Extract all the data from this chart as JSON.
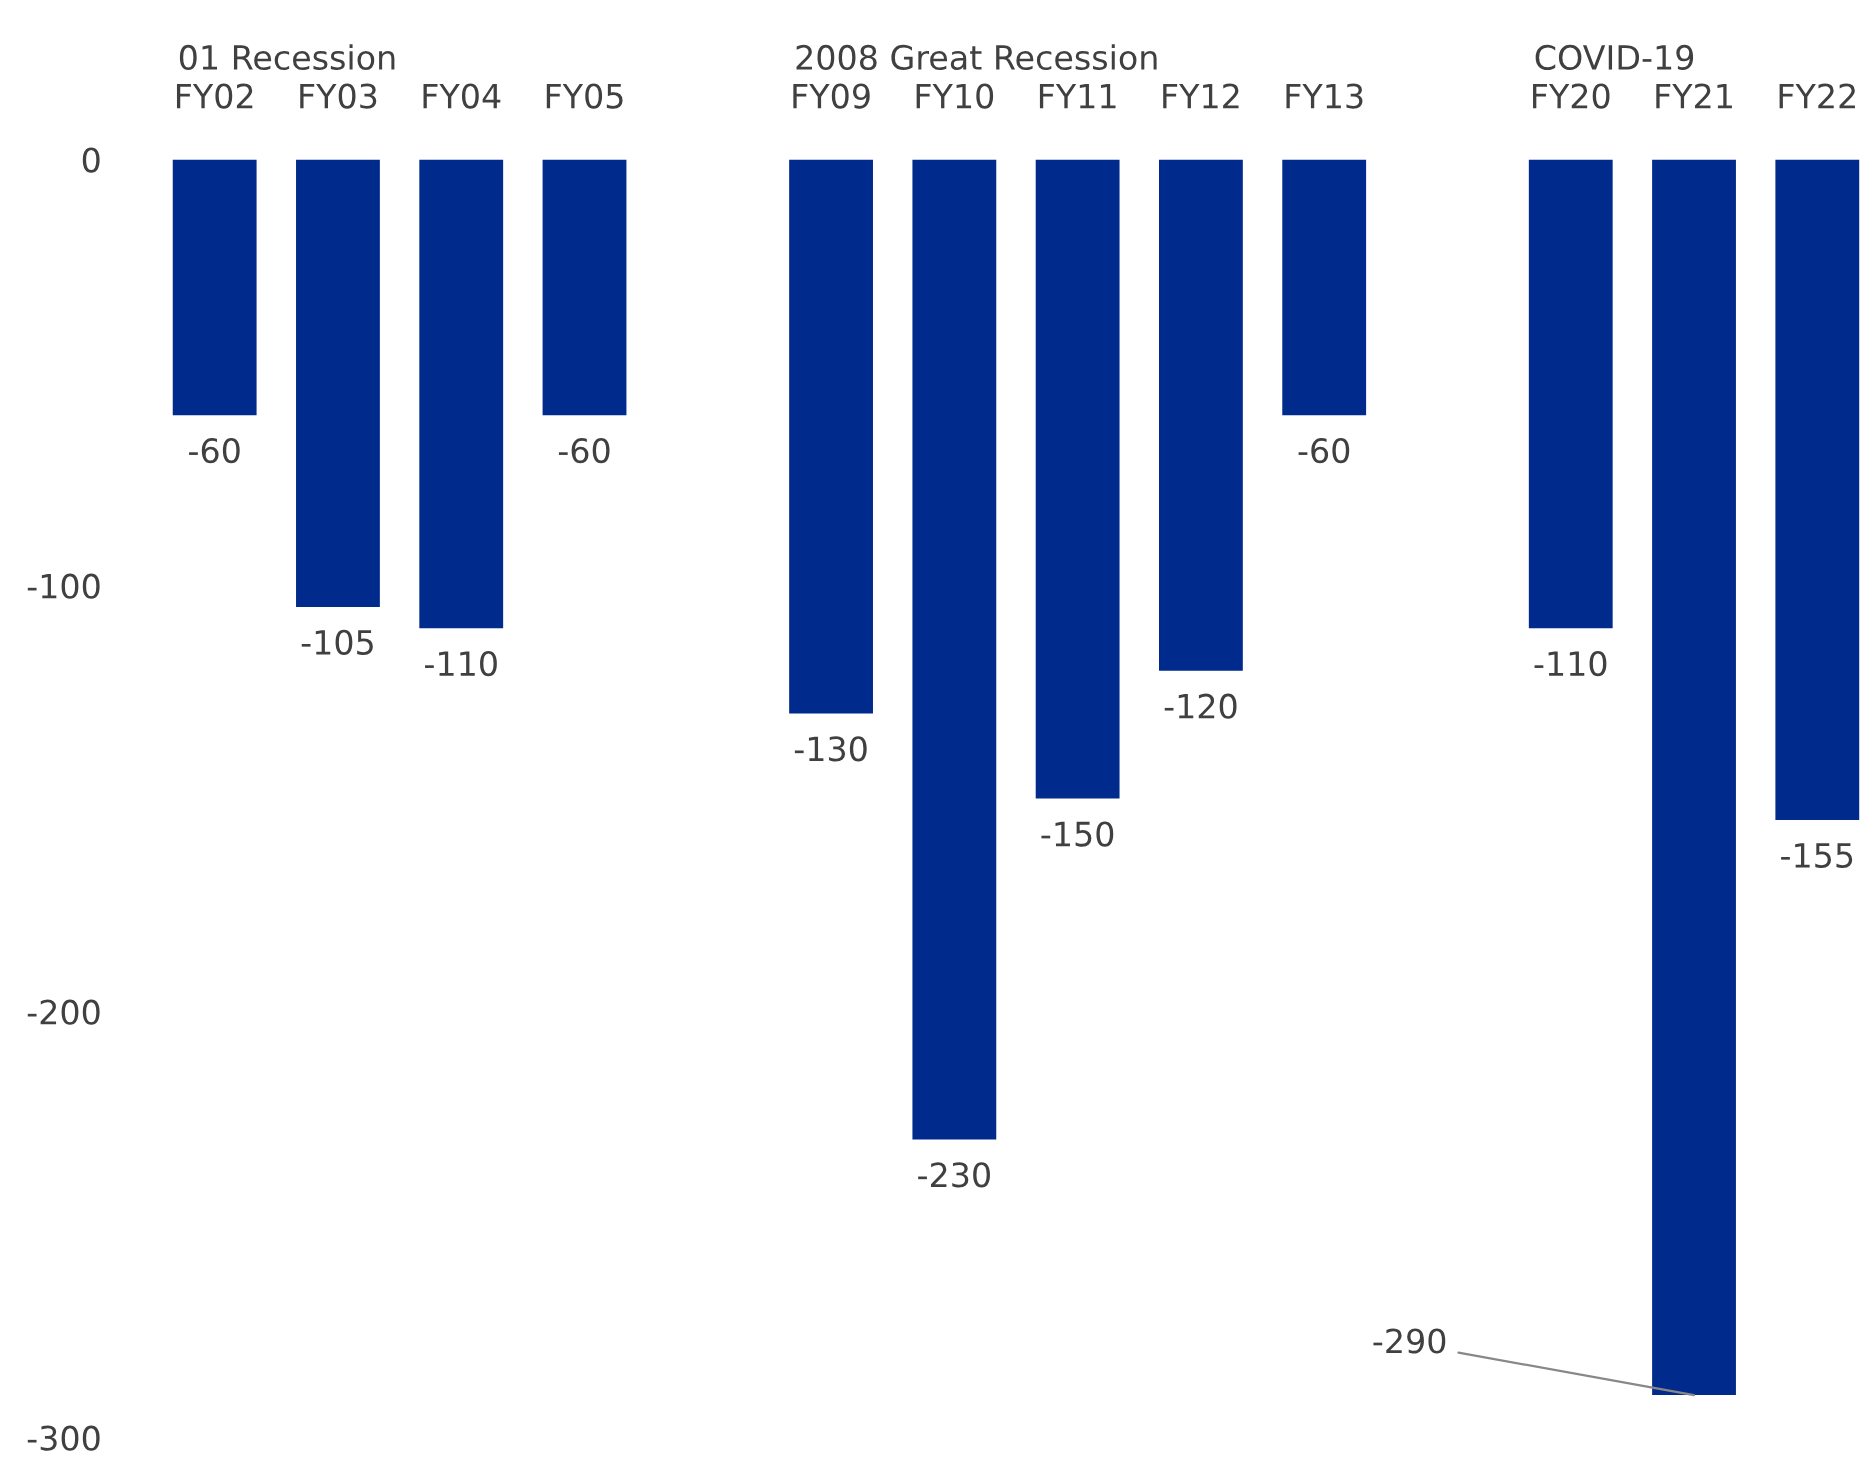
{
  "chart_data": {
    "type": "bar",
    "categories": [
      "FY02",
      "FY03",
      "FY04",
      "FY05",
      null,
      "FY09",
      "FY10",
      "FY11",
      "FY12",
      "FY13",
      null,
      "FY20",
      "FY21",
      "FY22"
    ],
    "values": [
      -60,
      -105,
      -110,
      -60,
      null,
      -130,
      -230,
      -150,
      -120,
      -60,
      null,
      -110,
      -290,
      -155
    ],
    "color": "#002b8c",
    "value_labels": [
      "-60",
      "-105",
      "-110",
      "-60",
      null,
      "-130",
      "-230",
      "-150",
      "-120",
      "-60",
      null,
      "-110",
      null,
      "-155"
    ],
    "ylim": [
      -300,
      0
    ],
    "yticks": [
      0,
      -100,
      -200,
      -300
    ],
    "grid": false,
    "legend": false,
    "annotations": [
      "01 Recession",
      "2008 Great Recession",
      "COVID-19",
      {
        "text": "-290",
        "x": "FY21",
        "y": -290
      }
    ]
  }
}
